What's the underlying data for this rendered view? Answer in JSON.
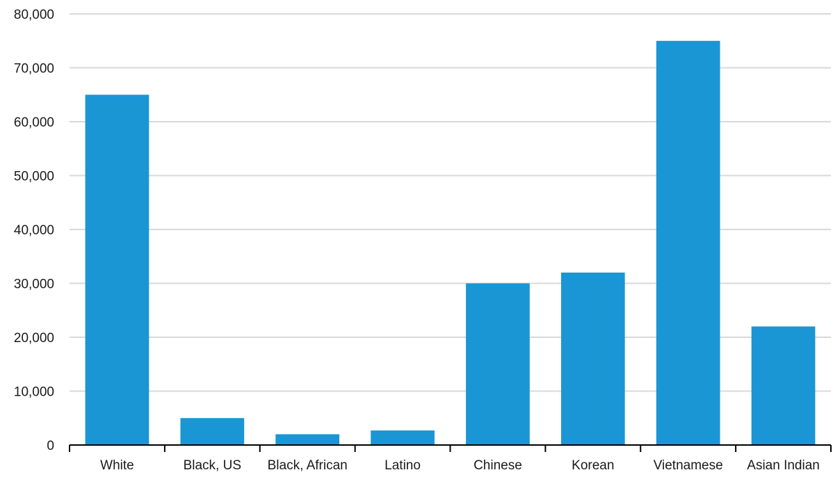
{
  "chart_data": {
    "type": "bar",
    "title": "",
    "xlabel": "",
    "ylabel": "",
    "categories": [
      "White",
      "Black, US",
      "Black, African",
      "Latino",
      "Chinese",
      "Korean",
      "Vietnamese",
      "Asian Indian"
    ],
    "series": [
      {
        "values": [
          65000,
          5000,
          2000,
          2700,
          30000,
          32000,
          75000,
          22000
        ]
      }
    ],
    "ylim": [
      0,
      80000
    ],
    "yticks": [
      0,
      10000,
      20000,
      30000,
      40000,
      50000,
      60000,
      70000,
      80000
    ],
    "ytick_labels": [
      "0",
      "10,000",
      "20,000",
      "30,000",
      "40,000",
      "50,000",
      "60,000",
      "70,000",
      "80,000"
    ],
    "grid": true,
    "legend": "none",
    "bar_color": "#1a96d4"
  }
}
